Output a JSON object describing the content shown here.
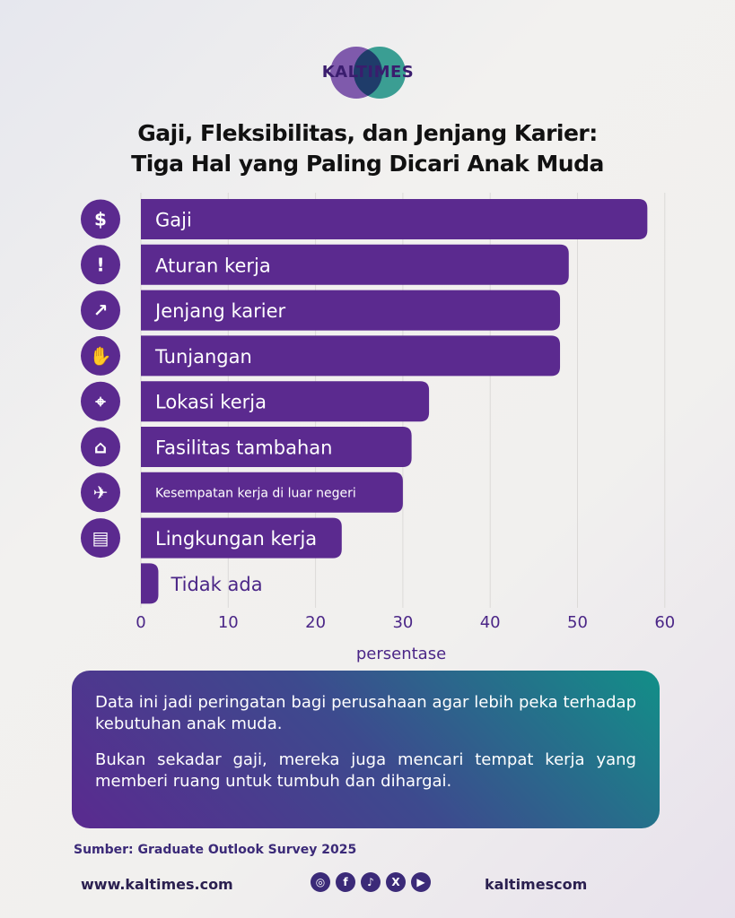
{
  "brand": {
    "name": "KALTIMES"
  },
  "title": {
    "line1": "Gaji, Fleksibilitas, dan Jenjang Karier:",
    "line2": "Tiga Hal yang Paling Dicari Anak Muda"
  },
  "chart_data": {
    "type": "bar",
    "orientation": "horizontal",
    "categories": [
      "Gaji",
      "Aturan kerja",
      "Jenjang karier",
      "Tunjangan",
      "Lokasi kerja",
      "Fasilitas tambahan",
      "Kesempatan kerja di luar negeri",
      "Lingkungan kerja",
      "Tidak ada"
    ],
    "icons": [
      "money-icon",
      "exclamation-icon",
      "growth-chart-icon",
      "benefits-hand-icon",
      "location-pin-icon",
      "house-facility-icon",
      "airplane-icon",
      "workspace-desk-icon",
      ""
    ],
    "values": [
      58,
      49,
      48,
      48,
      33,
      31,
      30,
      23,
      2
    ],
    "xlabel": "persentase",
    "xlim": [
      0,
      60
    ],
    "xticks": [
      0,
      10,
      20,
      30,
      40,
      50,
      60
    ],
    "grid": true,
    "bar_color": "#5b2a8f"
  },
  "note": {
    "paragraph1": "Data ini jadi peringatan bagi perusahaan agar lebih peka terhadap kebutuhan anak muda.",
    "paragraph2": "Bukan sekadar gaji, mereka juga mencari tempat kerja yang memberi ruang untuk tumbuh dan dihargai."
  },
  "source": "Sumber: Graduate Outlook Survey 2025",
  "footer": {
    "website": "www.kaltimes.com",
    "handle": "kaltimescom",
    "socials": [
      "instagram-icon",
      "facebook-icon",
      "tiktok-icon",
      "x-icon",
      "youtube-icon"
    ]
  }
}
